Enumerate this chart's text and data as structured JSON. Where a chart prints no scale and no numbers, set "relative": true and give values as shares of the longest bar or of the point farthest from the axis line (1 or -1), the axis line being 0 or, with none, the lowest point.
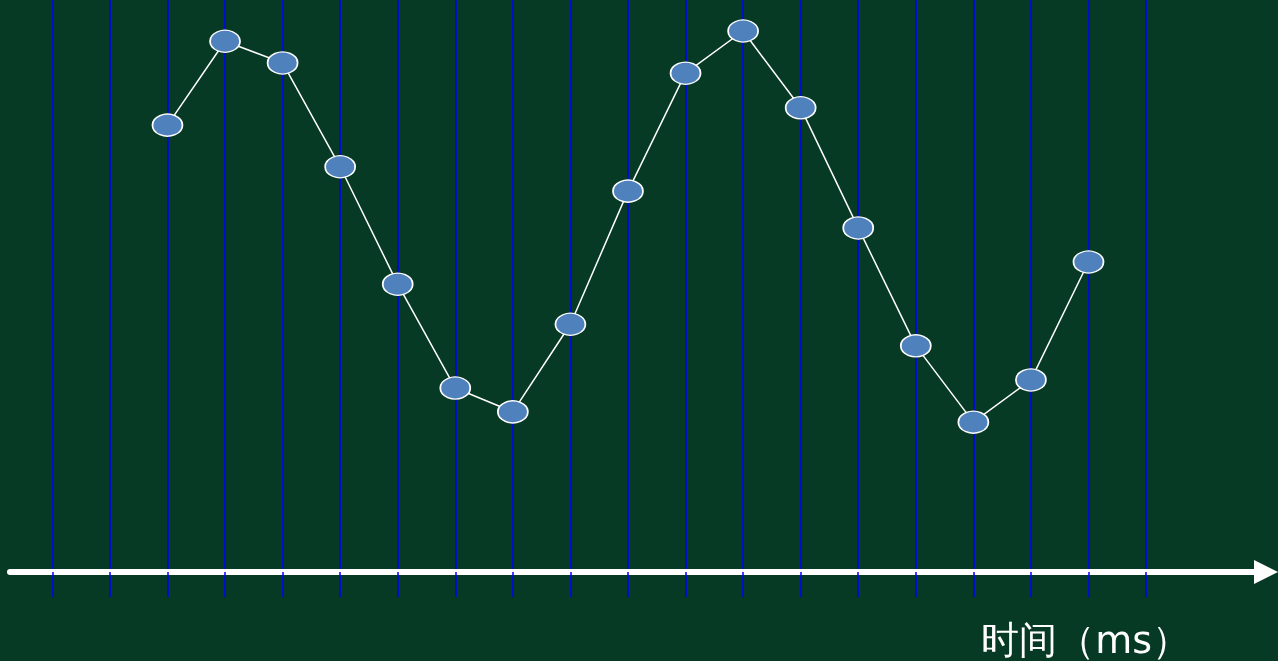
{
  "chart_data": {
    "type": "line",
    "relative": true,
    "xlabel": "时间（ms）",
    "categories": [
      null,
      null,
      null,
      null,
      null,
      null,
      null,
      null,
      null,
      null,
      null,
      null,
      null,
      null,
      null,
      null,
      null,
      null,
      null,
      null
    ],
    "series": [
      {
        "color": "#ffffff",
        "colors": [
          null,
          null,
          "#4f81bd",
          "#4f81bd",
          "#4f81bd",
          "#4f81bd",
          "#4f81bd",
          "#4f81bd",
          "#4f81bd",
          "#4f81bd",
          "#4f81bd",
          "#4f81bd",
          "#4f81bd",
          "#4f81bd",
          "#4f81bd",
          "#4f81bd",
          "#4f81bd",
          "#4f81bd",
          "#4f81bd",
          null
        ],
        "values": [
          null,
          null,
          0.826,
          0.981,
          0.941,
          0.749,
          0.532,
          0.34,
          0.296,
          0.458,
          0.704,
          0.922,
          1,
          0.858,
          0.636,
          0.418,
          0.277,
          0.355,
          0.573,
          null
        ]
      }
    ],
    "marker": "circle",
    "line_style": "solid",
    "grid": "x"
  }
}
